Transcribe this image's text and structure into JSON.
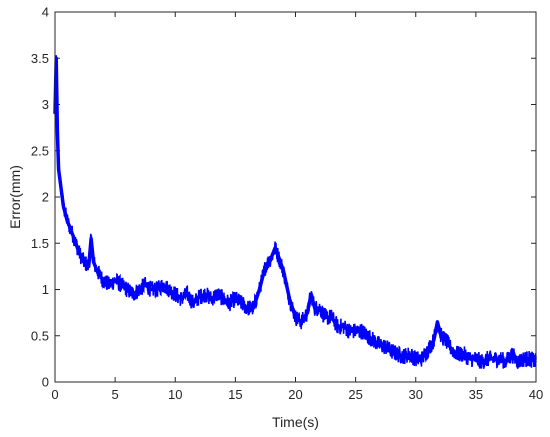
{
  "chart_data": {
    "type": "line",
    "title": "",
    "xlabel": "Time(s)",
    "ylabel": "Error(mm)",
    "xlim": [
      0,
      40
    ],
    "ylim": [
      0,
      4
    ],
    "grid": false,
    "x_ticks": [
      0,
      5,
      10,
      15,
      20,
      25,
      30,
      35,
      40
    ],
    "y_ticks": [
      0,
      0.5,
      1,
      1.5,
      2,
      2.5,
      3,
      3.5,
      4
    ],
    "x_tick_labels": [
      "0",
      "5",
      "10",
      "15",
      "20",
      "25",
      "30",
      "35",
      "40"
    ],
    "y_tick_labels": [
      "0",
      "0.5",
      "1",
      "1.5",
      "2",
      "2.5",
      "3",
      "3.5",
      "4"
    ],
    "series": [
      {
        "color": "#0000ff",
        "x": [
          0,
          0.1,
          0.2,
          0.3,
          0.5,
          0.7,
          1.0,
          1.3,
          1.6,
          2.0,
          2.4,
          2.8,
          3.0,
          3.2,
          3.5,
          4.0,
          4.5,
          5.0,
          5.5,
          6.0,
          6.5,
          7.0,
          7.5,
          8.0,
          8.5,
          9.0,
          9.5,
          10.0,
          10.5,
          11.0,
          11.5,
          12.0,
          12.5,
          13.0,
          13.5,
          14.0,
          14.5,
          15.0,
          15.5,
          16.0,
          16.5,
          17.0,
          17.5,
          18.0,
          18.3,
          18.6,
          19.0,
          19.5,
          20.0,
          20.5,
          21.0,
          21.3,
          21.6,
          22.0,
          22.5,
          23.0,
          23.5,
          24.0,
          24.5,
          25.0,
          25.5,
          26.0,
          26.5,
          27.0,
          27.5,
          28.0,
          28.5,
          29.0,
          29.5,
          30.0,
          30.5,
          31.0,
          31.5,
          31.8,
          32.1,
          32.5,
          33.0,
          33.5,
          34.0,
          34.5,
          35.0,
          35.5,
          36.0,
          36.5,
          37.0,
          37.5,
          38.0,
          38.5,
          39.0,
          39.5,
          40.0
        ],
        "y": [
          2.9,
          3.5,
          2.7,
          2.3,
          2.1,
          1.9,
          1.75,
          1.65,
          1.55,
          1.4,
          1.3,
          1.25,
          1.55,
          1.3,
          1.2,
          1.1,
          1.05,
          1.1,
          1.05,
          1.0,
          0.95,
          1.0,
          1.05,
          1.0,
          1.0,
          1.05,
          1.0,
          0.95,
          0.9,
          0.95,
          0.85,
          0.92,
          0.95,
          0.9,
          0.95,
          0.9,
          0.85,
          0.9,
          0.85,
          0.8,
          0.8,
          1.0,
          1.25,
          1.35,
          1.45,
          1.35,
          1.2,
          0.9,
          0.7,
          0.65,
          0.75,
          0.95,
          0.8,
          0.8,
          0.7,
          0.7,
          0.6,
          0.6,
          0.55,
          0.55,
          0.55,
          0.5,
          0.45,
          0.4,
          0.38,
          0.33,
          0.3,
          0.28,
          0.3,
          0.25,
          0.25,
          0.35,
          0.45,
          0.65,
          0.5,
          0.45,
          0.35,
          0.3,
          0.3,
          0.25,
          0.25,
          0.22,
          0.25,
          0.25,
          0.25,
          0.22,
          0.3,
          0.22,
          0.25,
          0.25,
          0.22
        ]
      }
    ]
  }
}
